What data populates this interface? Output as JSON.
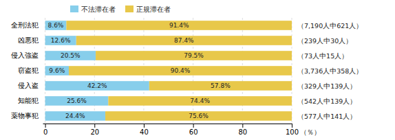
{
  "chart_data": {
    "type": "bar",
    "orientation": "horizontal",
    "stacked": true,
    "categories": [
      "全刑法犯",
      "凶悪犯",
      "侵入強盗",
      "窃盗犯",
      "侵入盗",
      "知能犯",
      "薬物事犯"
    ],
    "series": [
      {
        "name": "不法滞在者",
        "color": "#87CEEB",
        "values": [
          8.6,
          12.6,
          20.5,
          9.6,
          42.2,
          25.6,
          24.4
        ],
        "value_labels": [
          "8.6%",
          "12.6%",
          "20.5%",
          "9.6%",
          "42.2%",
          "25.6%",
          "24.4%"
        ]
      },
      {
        "name": "正規滞在者",
        "color": "#E8C84A",
        "values": [
          91.4,
          87.4,
          79.5,
          90.4,
          57.8,
          74.4,
          75.6
        ],
        "value_labels": [
          "91.4%",
          "87.4%",
          "79.5%",
          "90.4%",
          "57.8%",
          "74.4%",
          "75.6%"
        ]
      }
    ],
    "annotations": [
      "（7,190人中621人）",
      "（239人中30人）",
      "（73人中15人）",
      "（3,736人中358人）",
      "（329人中139人）",
      "（542人中139人）",
      "（577人中141人）"
    ],
    "xlabel": "（％）",
    "xlim": [
      -1,
      100
    ],
    "xticks": [
      0,
      20,
      40,
      60,
      80,
      100
    ],
    "grid": true,
    "data_labels": true,
    "legend": "top"
  }
}
